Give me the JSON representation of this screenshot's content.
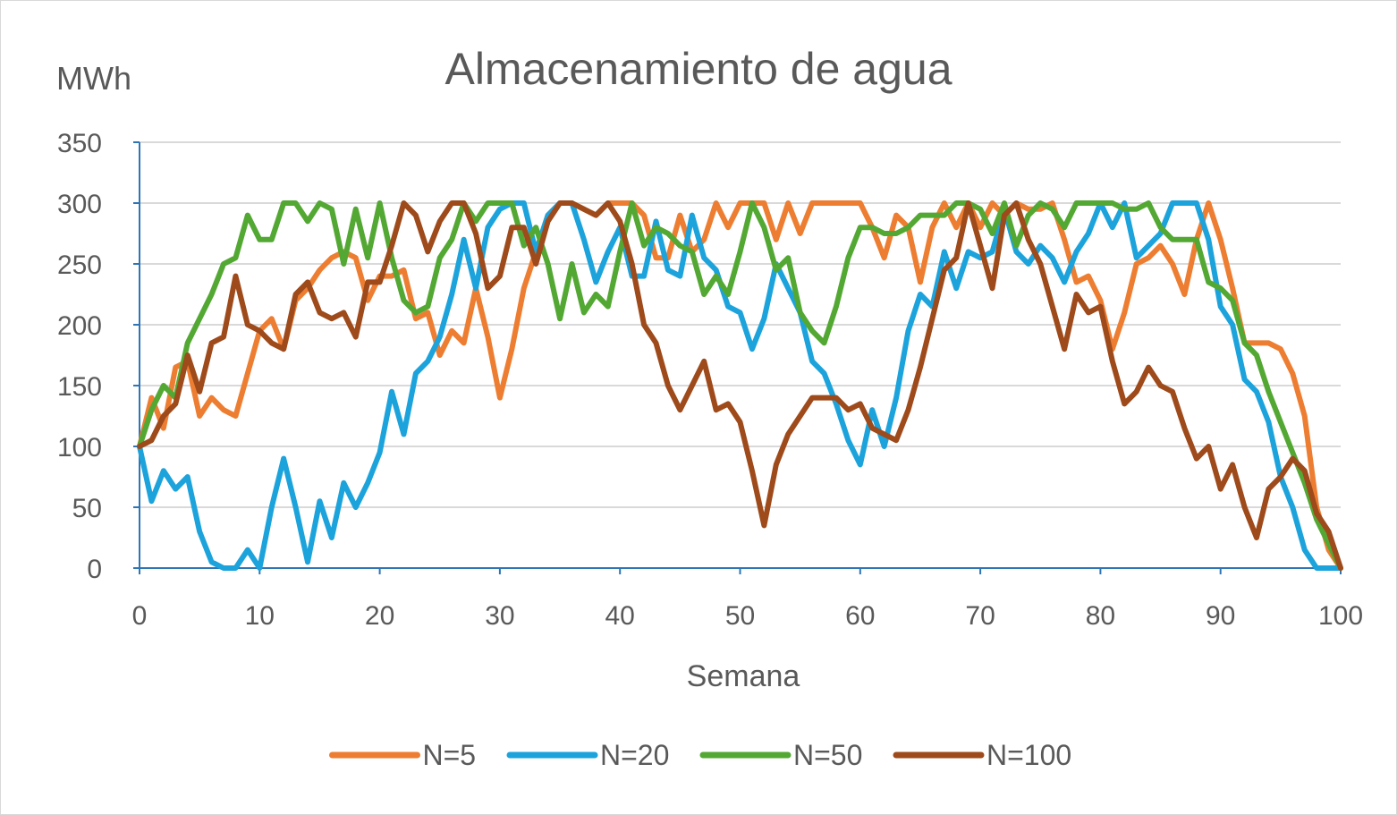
{
  "chart_data": {
    "type": "line",
    "title": "Almacenamiento de agua",
    "ylabel": "MWh",
    "xlabel": "Semana",
    "xlim": [
      0,
      100
    ],
    "ylim": [
      0,
      350
    ],
    "xticks": [
      0,
      10,
      20,
      30,
      40,
      50,
      60,
      70,
      80,
      90,
      100
    ],
    "yticks": [
      0,
      50,
      100,
      150,
      200,
      250,
      300,
      350
    ],
    "grid": "horizontal",
    "legend_position": "bottom",
    "series": [
      {
        "name": "N=5",
        "color": "#ed7d31",
        "x": [
          0,
          1,
          2,
          3,
          4,
          5,
          6,
          7,
          8,
          9,
          10,
          11,
          12,
          13,
          14,
          15,
          16,
          17,
          18,
          19,
          20,
          21,
          22,
          23,
          24,
          25,
          26,
          27,
          28,
          29,
          30,
          31,
          32,
          33,
          34,
          35,
          36,
          37,
          38,
          39,
          40,
          41,
          42,
          43,
          44,
          45,
          46,
          47,
          48,
          49,
          50,
          51,
          52,
          53,
          54,
          55,
          56,
          57,
          58,
          59,
          60,
          61,
          62,
          63,
          64,
          65,
          66,
          67,
          68,
          69,
          70,
          71,
          72,
          73,
          74,
          75,
          76,
          77,
          78,
          79,
          80,
          81,
          82,
          83,
          84,
          85,
          86,
          87,
          88,
          89,
          90,
          91,
          92,
          93,
          94,
          95,
          96,
          97,
          98,
          99,
          100
        ],
        "values": [
          100,
          140,
          115,
          165,
          170,
          125,
          140,
          130,
          125,
          160,
          195,
          205,
          180,
          220,
          230,
          245,
          255,
          260,
          255,
          220,
          240,
          240,
          245,
          205,
          210,
          175,
          195,
          185,
          230,
          190,
          140,
          180,
          230,
          260,
          290,
          300,
          300,
          295,
          290,
          300,
          300,
          300,
          290,
          255,
          255,
          290,
          260,
          270,
          300,
          280,
          300,
          300,
          300,
          270,
          300,
          275,
          300,
          300,
          300,
          300,
          300,
          280,
          255,
          290,
          280,
          235,
          280,
          300,
          280,
          300,
          280,
          300,
          290,
          300,
          295,
          295,
          300,
          270,
          235,
          240,
          220,
          180,
          210,
          250,
          255,
          265,
          250,
          225,
          270,
          300,
          270,
          230,
          185,
          185,
          185,
          180,
          160,
          125,
          50,
          15,
          0
        ]
      },
      {
        "name": "N=20",
        "color": "#1ca3dc",
        "x": [
          0,
          1,
          2,
          3,
          4,
          5,
          6,
          7,
          8,
          9,
          10,
          11,
          12,
          13,
          14,
          15,
          16,
          17,
          18,
          19,
          20,
          21,
          22,
          23,
          24,
          25,
          26,
          27,
          28,
          29,
          30,
          31,
          32,
          33,
          34,
          35,
          36,
          37,
          38,
          39,
          40,
          41,
          42,
          43,
          44,
          45,
          46,
          47,
          48,
          49,
          50,
          51,
          52,
          53,
          54,
          55,
          56,
          57,
          58,
          59,
          60,
          61,
          62,
          63,
          64,
          65,
          66,
          67,
          68,
          69,
          70,
          71,
          72,
          73,
          74,
          75,
          76,
          77,
          78,
          79,
          80,
          81,
          82,
          83,
          84,
          85,
          86,
          87,
          88,
          89,
          90,
          91,
          92,
          93,
          94,
          95,
          96,
          97,
          98,
          99,
          100
        ],
        "values": [
          100,
          55,
          80,
          65,
          75,
          30,
          5,
          0,
          0,
          15,
          0,
          50,
          90,
          50,
          5,
          55,
          25,
          70,
          50,
          70,
          95,
          145,
          110,
          160,
          170,
          190,
          225,
          270,
          230,
          280,
          295,
          300,
          300,
          260,
          290,
          300,
          300,
          270,
          235,
          260,
          280,
          240,
          240,
          285,
          245,
          240,
          290,
          255,
          245,
          215,
          210,
          180,
          205,
          250,
          230,
          210,
          170,
          160,
          135,
          105,
          85,
          130,
          100,
          140,
          195,
          225,
          215,
          260,
          230,
          260,
          255,
          260,
          295,
          260,
          250,
          265,
          255,
          235,
          260,
          275,
          300,
          280,
          300,
          255,
          265,
          275,
          300,
          300,
          300,
          270,
          215,
          200,
          155,
          145,
          120,
          75,
          50,
          15,
          0,
          0,
          0
        ]
      },
      {
        "name": "N=50",
        "color": "#53a833",
        "x": [
          0,
          1,
          2,
          3,
          4,
          5,
          6,
          7,
          8,
          9,
          10,
          11,
          12,
          13,
          14,
          15,
          16,
          17,
          18,
          19,
          20,
          21,
          22,
          23,
          24,
          25,
          26,
          27,
          28,
          29,
          30,
          31,
          32,
          33,
          34,
          35,
          36,
          37,
          38,
          39,
          40,
          41,
          42,
          43,
          44,
          45,
          46,
          47,
          48,
          49,
          50,
          51,
          52,
          53,
          54,
          55,
          56,
          57,
          58,
          59,
          60,
          61,
          62,
          63,
          64,
          65,
          66,
          67,
          68,
          69,
          70,
          71,
          72,
          73,
          74,
          75,
          76,
          77,
          78,
          79,
          80,
          81,
          82,
          83,
          84,
          85,
          86,
          87,
          88,
          89,
          90,
          91,
          92,
          93,
          94,
          95,
          96,
          97,
          98,
          99,
          100
        ],
        "values": [
          100,
          130,
          150,
          140,
          185,
          205,
          225,
          250,
          255,
          290,
          270,
          270,
          300,
          300,
          285,
          300,
          295,
          250,
          295,
          255,
          300,
          255,
          220,
          210,
          215,
          255,
          270,
          300,
          285,
          300,
          300,
          300,
          265,
          280,
          250,
          205,
          250,
          210,
          225,
          215,
          260,
          300,
          265,
          280,
          275,
          265,
          260,
          225,
          240,
          225,
          260,
          300,
          280,
          245,
          255,
          210,
          195,
          185,
          215,
          255,
          280,
          280,
          275,
          275,
          280,
          290,
          290,
          290,
          300,
          300,
          295,
          275,
          300,
          265,
          290,
          300,
          295,
          280,
          300,
          300,
          300,
          300,
          295,
          295,
          300,
          280,
          270,
          270,
          270,
          235,
          230,
          220,
          185,
          175,
          145,
          120,
          95,
          70,
          40,
          20,
          0
        ]
      },
      {
        "name": "N=100",
        "color": "#9e4a1b",
        "x": [
          0,
          1,
          2,
          3,
          4,
          5,
          6,
          7,
          8,
          9,
          10,
          11,
          12,
          13,
          14,
          15,
          16,
          17,
          18,
          19,
          20,
          21,
          22,
          23,
          24,
          25,
          26,
          27,
          28,
          29,
          30,
          31,
          32,
          33,
          34,
          35,
          36,
          37,
          38,
          39,
          40,
          41,
          42,
          43,
          44,
          45,
          46,
          47,
          48,
          49,
          50,
          51,
          52,
          53,
          54,
          55,
          56,
          57,
          58,
          59,
          60,
          61,
          62,
          63,
          64,
          65,
          66,
          67,
          68,
          69,
          70,
          71,
          72,
          73,
          74,
          75,
          76,
          77,
          78,
          79,
          80,
          81,
          82,
          83,
          84,
          85,
          86,
          87,
          88,
          89,
          90,
          91,
          92,
          93,
          94,
          95,
          96,
          97,
          98,
          99,
          100
        ],
        "values": [
          100,
          105,
          125,
          135,
          175,
          145,
          185,
          190,
          240,
          200,
          195,
          185,
          180,
          225,
          235,
          210,
          205,
          210,
          190,
          235,
          235,
          265,
          300,
          290,
          260,
          285,
          300,
          300,
          275,
          230,
          240,
          280,
          280,
          250,
          285,
          300,
          300,
          295,
          290,
          300,
          285,
          250,
          200,
          185,
          150,
          130,
          150,
          170,
          130,
          135,
          120,
          80,
          35,
          85,
          110,
          125,
          140,
          140,
          140,
          130,
          135,
          115,
          110,
          105,
          130,
          165,
          205,
          245,
          255,
          300,
          265,
          230,
          290,
          300,
          270,
          250,
          215,
          180,
          225,
          210,
          215,
          170,
          135,
          145,
          165,
          150,
          145,
          115,
          90,
          100,
          65,
          85,
          50,
          25,
          65,
          75,
          90,
          80,
          45,
          30,
          0
        ]
      }
    ]
  }
}
